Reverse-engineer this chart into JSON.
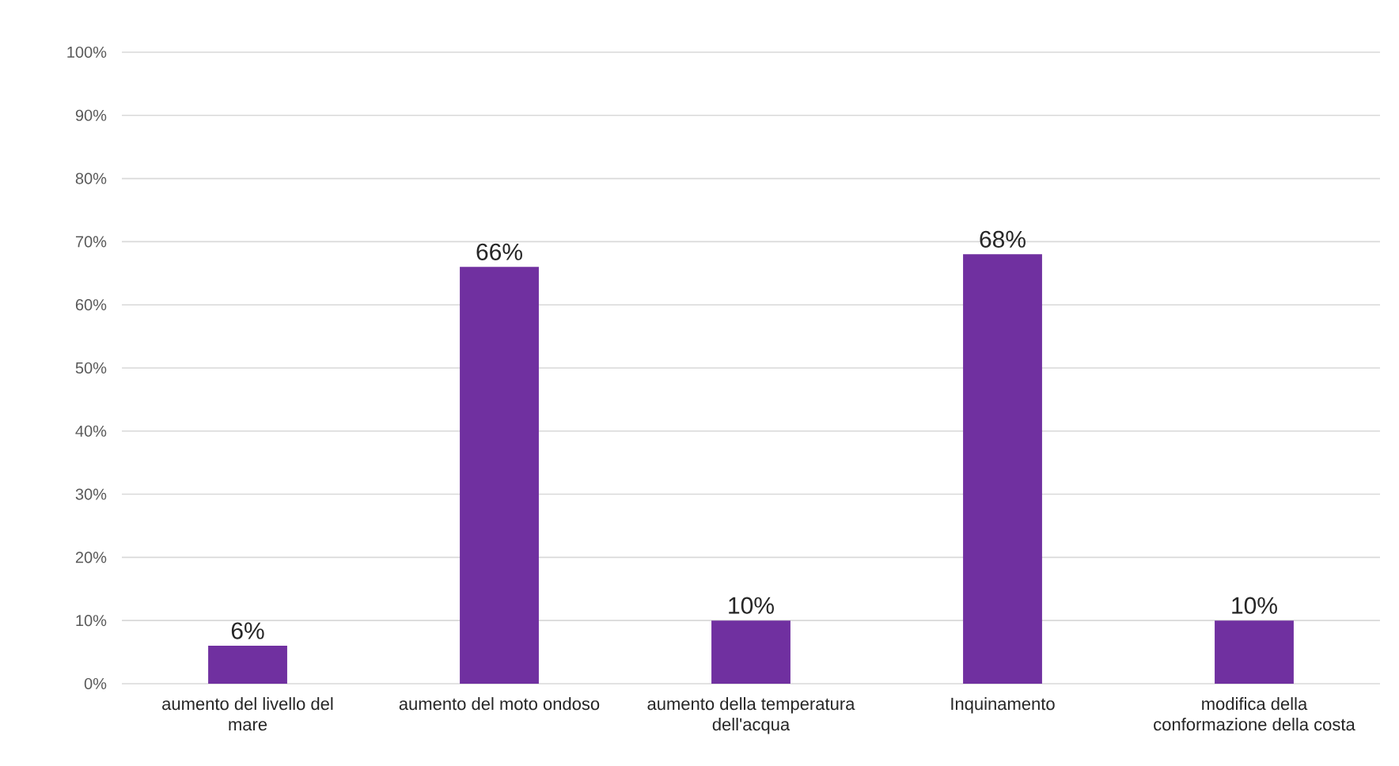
{
  "chart_data": {
    "type": "bar",
    "categories": [
      "aumento del livello del mare",
      "aumento del moto ondoso",
      "aumento della temperatura dell'acqua",
      "Inquinamento",
      "modifica della conformazione della costa"
    ],
    "values": [
      6,
      66,
      10,
      68,
      10
    ],
    "color": "#7030a0",
    "ylim": [
      0,
      100
    ],
    "yticks": [
      {
        "value": 0,
        "label": "0%"
      },
      {
        "value": 10,
        "label": "10%"
      },
      {
        "value": 20,
        "label": "20%"
      },
      {
        "value": 30,
        "label": "30%"
      },
      {
        "value": 40,
        "label": "40%"
      },
      {
        "value": 50,
        "label": "50%"
      },
      {
        "value": 60,
        "label": "60%"
      },
      {
        "value": 70,
        "label": "70%"
      },
      {
        "value": 80,
        "label": "80%"
      },
      {
        "value": 90,
        "label": "90%"
      },
      {
        "value": 100,
        "label": "100%"
      }
    ],
    "grid": "y",
    "value_labels": [
      "6%",
      "66%",
      "10%",
      "68%",
      "10%"
    ]
  }
}
